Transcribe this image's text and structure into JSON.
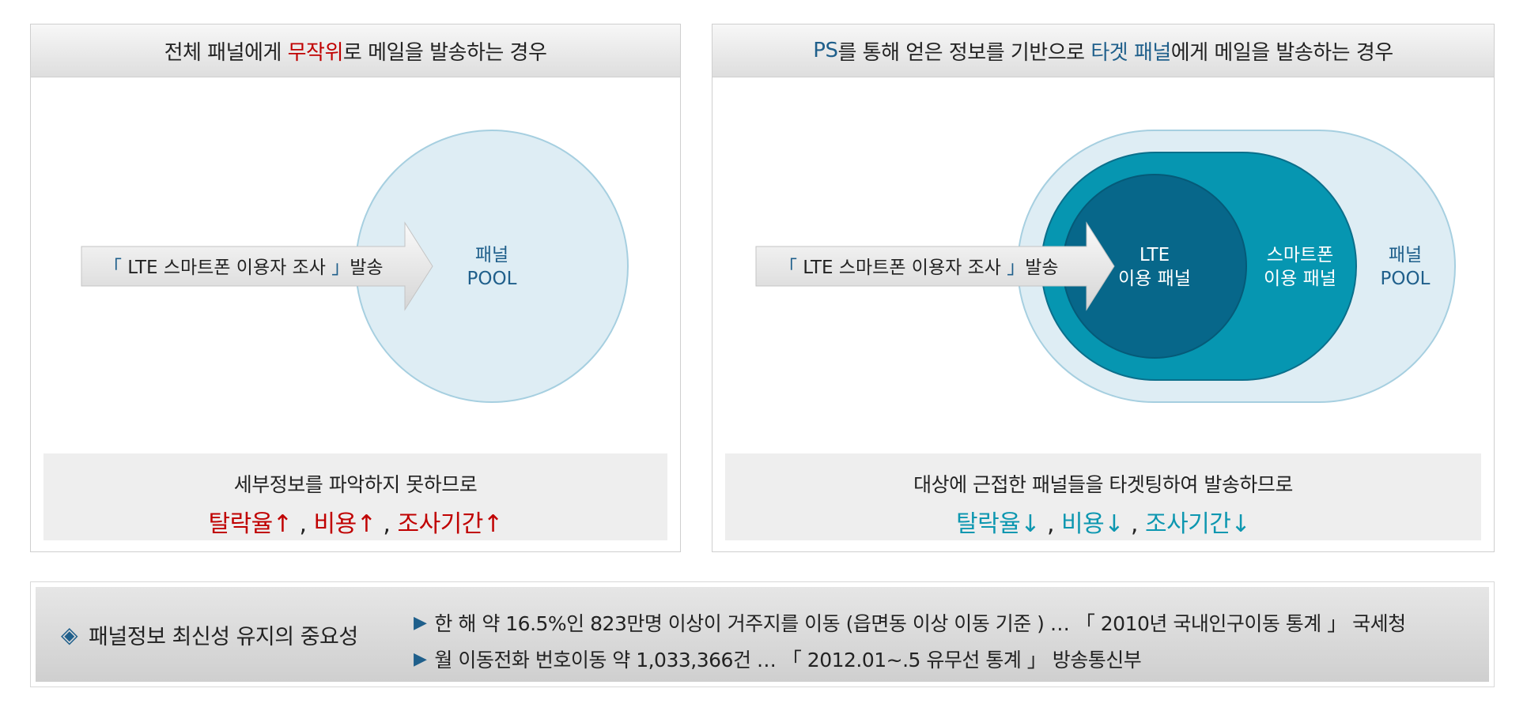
{
  "left_panel": {
    "title_pre": "전체 패널에게 ",
    "title_highlight": "무작위",
    "title_post": "로 메일을 발송하는 경우",
    "arrow_label_open": "「",
    "arrow_label_text": " LTE 스마트폰 이용자 조사 ",
    "arrow_label_close": "」",
    "arrow_label_suffix": "발송",
    "pool_line1": "패널",
    "pool_line2": "POOL",
    "summary_line1": "세부정보를 파악하지 못하므로",
    "summary_item1": "탈락율↑",
    "summary_item2": "비용↑",
    "summary_item3": "조사기간↑",
    "summary_sep": " , "
  },
  "right_panel": {
    "title_hl1": "PS",
    "title_mid": "를 통해 얻은 정보를 기반으로 ",
    "title_hl2": "타겟 패널",
    "title_post": "에게 메일을 발송하는 경우",
    "arrow_label_open": "「",
    "arrow_label_text": " LTE 스마트폰 이용자 조사 ",
    "arrow_label_close": "」",
    "arrow_label_suffix": "발송",
    "inner_line1": "LTE",
    "inner_line2": "이용 패널",
    "mid_line1": "스마트폰",
    "mid_line2": "이용 패널",
    "outer_line1": "패널",
    "outer_line2": "POOL",
    "summary_line1": "대상에 근접한 패널들을 타겟팅하여 발송하므로",
    "summary_item1": "탈락율↓",
    "summary_item2": "비용↓",
    "summary_item3": "조사기간↓",
    "summary_sep": " , "
  },
  "bottom": {
    "diamond": "◈",
    "heading": "패널정보 최신성 유지의 중요성",
    "bullet": "▶",
    "fact1": "한 해 약 16.5%인 823만명 이상이 거주지를 이동 (읍면동 이상 이동 기준 ) … 「 2010년 국내인구이동 통계 」 국세청",
    "fact2": "월 이동전화 번호이동 약 1,033,366건 … 「 2012.01~.5 유무선 통계 」 방송통신부"
  },
  "colors": {
    "red": "#c00000",
    "blue": "#1f5f8b",
    "teal": "#0d97b0",
    "pool_fill": "#deedf4",
    "mid_fill": "#0696b1",
    "inner_fill": "#07678a"
  }
}
